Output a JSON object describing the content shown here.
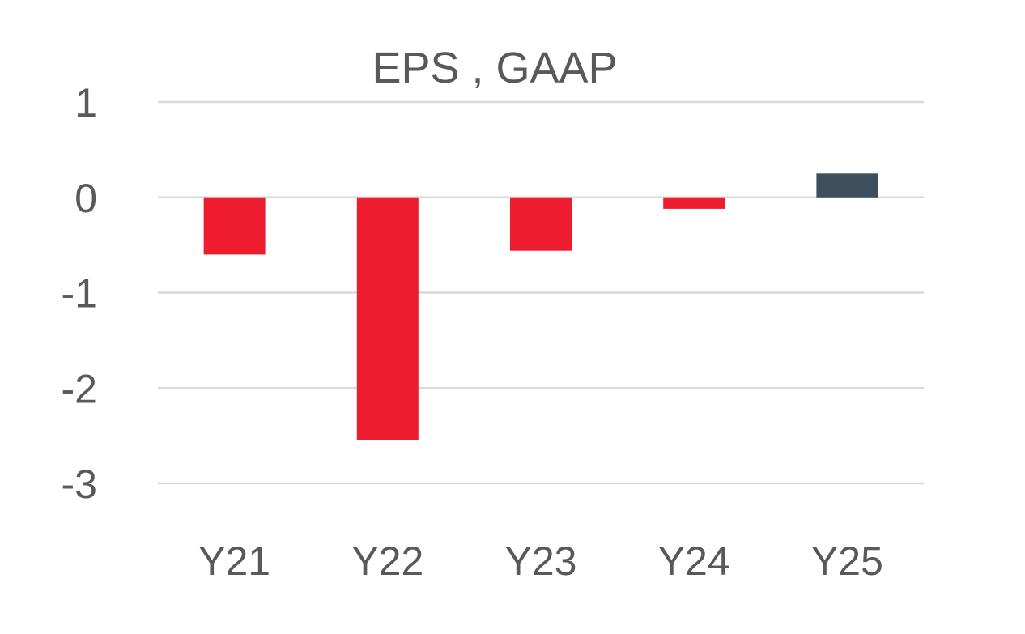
{
  "chart_data": {
    "type": "bar",
    "title": "EPS , GAAP",
    "xlabel": "",
    "ylabel": "",
    "categories": [
      "Y21",
      "Y22",
      "Y23",
      "Y24",
      "Y25"
    ],
    "series": [
      {
        "values": [
          -0.6,
          -2.55,
          -0.56,
          -0.12,
          0.25
        ]
      }
    ],
    "bar_colors": [
      "#ed1c2e",
      "#ed1c2e",
      "#ed1c2e",
      "#ed1c2e",
      "#3d4f5c"
    ],
    "ylim": [
      -3,
      1
    ],
    "yticks": [
      1,
      0,
      -1,
      -2,
      -3
    ],
    "ytick_labels": [
      "1",
      "0",
      "-1",
      "-2",
      "-3"
    ],
    "grid": true,
    "legend": "none",
    "colors": {
      "negative": "#ed1c2e",
      "positive": "#3d4f5c",
      "grid": "#d9d9d9",
      "text": "#595959"
    }
  }
}
